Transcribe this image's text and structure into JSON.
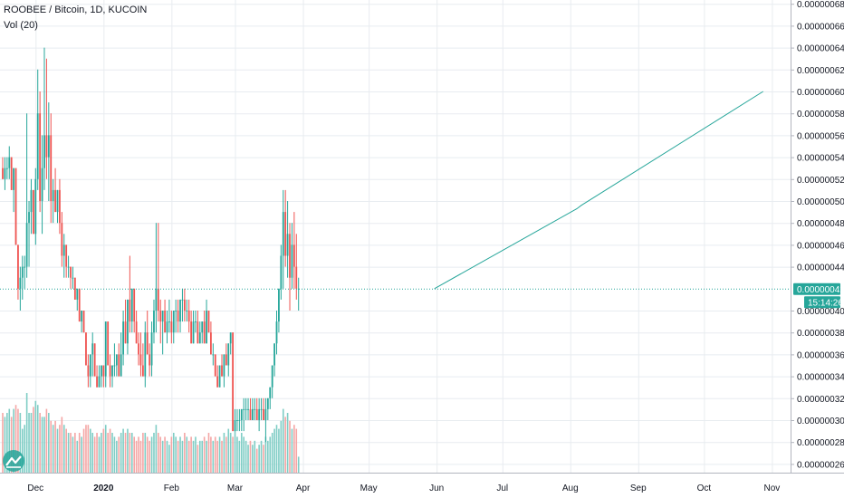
{
  "header": {
    "title": "ROOBEE / Bitcoin, 1D, KUCOIN",
    "volume_label": "Vol (20)"
  },
  "price_axis": {
    "ticks": [
      "0.00000068",
      "0.00000066",
      "0.00000064",
      "0.00000062",
      "0.00000060",
      "0.00000058",
      "0.00000056",
      "0.00000054",
      "0.00000052",
      "0.00000050",
      "0.00000048",
      "0.00000046",
      "0.00000044",
      "0.00000040",
      "0.00000038",
      "0.00000036",
      "0.00000034",
      "0.00000032",
      "0.00000030",
      "0.00000028",
      "0.00000026"
    ],
    "current_price_label": "0.00000042",
    "countdown_label": "15:14:26"
  },
  "time_axis": {
    "ticks": [
      {
        "label": "Dec",
        "bold": false
      },
      {
        "label": "2020",
        "bold": true
      },
      {
        "label": "Feb",
        "bold": false
      },
      {
        "label": "Mar",
        "bold": false
      },
      {
        "label": "Apr",
        "bold": false
      },
      {
        "label": "May",
        "bold": false
      },
      {
        "label": "Jun",
        "bold": false
      },
      {
        "label": "Jul",
        "bold": false
      },
      {
        "label": "Aug",
        "bold": false
      },
      {
        "label": "Sep",
        "bold": false
      },
      {
        "label": "Oct",
        "bold": false
      },
      {
        "label": "Nov",
        "bold": false
      }
    ]
  },
  "colors": {
    "up": "#26a69a",
    "down": "#ef5350",
    "up_volume": "#7fcdc5",
    "down_volume": "#f4a6a5",
    "current_price_badge": "#26a69a",
    "countdown_badge": "#26a69a",
    "trend_line": "#26a69a",
    "grid": "#e8ecf0"
  },
  "logo_icon": "tradingview-logo-icon",
  "chart_data": {
    "type": "candlestick",
    "title": "ROOBEE / Bitcoin, 1D, KUCOIN",
    "start_date": "2019-11-16",
    "ylim": [
      2.5e-07,
      6.85e-07
    ],
    "grid": true,
    "current_price": 4.2e-07,
    "candles": [
      [
        5.3e-07,
        5.4e-07,
        5.2e-07,
        5.2e-07,
        0.3
      ],
      [
        5.2e-07,
        5.4e-07,
        5.1e-07,
        5.3e-07,
        0.28
      ],
      [
        5.3e-07,
        5.4e-07,
        5.2e-07,
        5.3e-07,
        0.3
      ],
      [
        5.3e-07,
        5.5e-07,
        5.2e-07,
        5.4e-07,
        0.32
      ],
      [
        5.4e-07,
        5.4e-07,
        5.1e-07,
        5.1e-07,
        0.28
      ],
      [
        5.1e-07,
        5.3e-07,
        4.9e-07,
        5.3e-07,
        0.32
      ],
      [
        5.3e-07,
        5.3e-07,
        4.6e-07,
        4.6e-07,
        0.34
      ],
      [
        4.6e-07,
        4.6e-07,
        4.1e-07,
        4.2e-07,
        0.32
      ],
      [
        4.2e-07,
        4.4e-07,
        4e-07,
        4.3e-07,
        0.3
      ],
      [
        4.3e-07,
        4.5e-07,
        4.1e-07,
        4.4e-07,
        0.22
      ],
      [
        4.4e-07,
        4.5e-07,
        4.2e-07,
        4.4e-07,
        0.24
      ],
      [
        4.4e-07,
        5.8e-07,
        4.3e-07,
        4.8e-07,
        0.4
      ],
      [
        4.8e-07,
        5e-07,
        4.4e-07,
        4.9e-07,
        0.3
      ],
      [
        4.9e-07,
        5.2e-07,
        4.7e-07,
        5.1e-07,
        0.3
      ],
      [
        5.1e-07,
        5.1e-07,
        4.7e-07,
        4.7e-07,
        0.33
      ],
      [
        4.7e-07,
        5.3e-07,
        4.6e-07,
        5.2e-07,
        0.36
      ],
      [
        5.2e-07,
        6.2e-07,
        5.1e-07,
        5.8e-07,
        0.34
      ],
      [
        5.8e-07,
        6e-07,
        4.9e-07,
        5e-07,
        0.3
      ],
      [
        5e-07,
        5.6e-07,
        4.7e-07,
        5.3e-07,
        0.28
      ],
      [
        5.3e-07,
        6.4e-07,
        5.1e-07,
        5.6e-07,
        0.28
      ],
      [
        5.6e-07,
        6.3e-07,
        5.2e-07,
        5.4e-07,
        0.32
      ],
      [
        5.4e-07,
        5.9e-07,
        5e-07,
        5.6e-07,
        0.3
      ],
      [
        5.6e-07,
        5.8e-07,
        4.8e-07,
        5e-07,
        0.26
      ],
      [
        5e-07,
        5.2e-07,
        4.8e-07,
        5.1e-07,
        0.24
      ],
      [
        5.1e-07,
        5.3e-07,
        4.9e-07,
        4.9e-07,
        0.26
      ],
      [
        4.9e-07,
        5.1e-07,
        4.8e-07,
        5.1e-07,
        0.22
      ],
      [
        5.1e-07,
        5.2e-07,
        4.7e-07,
        4.8e-07,
        0.24
      ],
      [
        4.8e-07,
        4.9e-07,
        4.4e-07,
        4.5e-07,
        0.28
      ],
      [
        4.5e-07,
        4.7e-07,
        4.3e-07,
        4.6e-07,
        0.24
      ],
      [
        4.6e-07,
        4.6e-07,
        4.3e-07,
        4.4e-07,
        0.22
      ],
      [
        4.4e-07,
        4.5e-07,
        4.3e-07,
        4.4e-07,
        0.2
      ],
      [
        4.4e-07,
        4.4e-07,
        4.2e-07,
        4.3e-07,
        0.2
      ],
      [
        4.3e-07,
        4.4e-07,
        4.2e-07,
        4.3e-07,
        0.18
      ],
      [
        4.3e-07,
        4.3e-07,
        4.1e-07,
        4.1e-07,
        0.2
      ],
      [
        4.1e-07,
        4.2e-07,
        4e-07,
        4.2e-07,
        0.16
      ],
      [
        4.2e-07,
        4.2e-07,
        3.9e-07,
        3.9e-07,
        0.2
      ],
      [
        3.9e-07,
        4e-07,
        3.8e-07,
        4e-07,
        0.18
      ],
      [
        4e-07,
        4e-07,
        3.8e-07,
        3.8e-07,
        0.22
      ],
      [
        3.8e-07,
        3.8e-07,
        3.5e-07,
        3.5e-07,
        0.24
      ],
      [
        3.5e-07,
        3.6e-07,
        3.3e-07,
        3.4e-07,
        0.24
      ],
      [
        3.4e-07,
        3.6e-07,
        3.3e-07,
        3.6e-07,
        0.22
      ],
      [
        3.6e-07,
        3.8e-07,
        3.4e-07,
        3.7e-07,
        0.2
      ],
      [
        3.7e-07,
        3.7e-07,
        3.4e-07,
        3.4e-07,
        0.18
      ],
      [
        3.4e-07,
        3.5e-07,
        3.3e-07,
        3.3e-07,
        0.2
      ],
      [
        3.3e-07,
        3.5e-07,
        3.3e-07,
        3.4e-07,
        0.18
      ],
      [
        3.4e-07,
        3.5e-07,
        3.3e-07,
        3.5e-07,
        0.2
      ],
      [
        3.5e-07,
        3.5e-07,
        3.3e-07,
        3.4e-07,
        0.22
      ],
      [
        3.4e-07,
        3.9e-07,
        3.3e-07,
        3.9e-07,
        0.24
      ],
      [
        3.9e-07,
        3.9e-07,
        3.5e-07,
        3.5e-07,
        0.2
      ],
      [
        3.5e-07,
        3.6e-07,
        3.3e-07,
        3.4e-07,
        0.22
      ],
      [
        3.4e-07,
        3.5e-07,
        3.3e-07,
        3.5e-07,
        0.2
      ],
      [
        3.5e-07,
        3.7e-07,
        3.4e-07,
        3.5e-07,
        0.18
      ],
      [
        3.5e-07,
        3.6e-07,
        3.4e-07,
        3.6e-07,
        0.16
      ],
      [
        3.6e-07,
        3.7e-07,
        3.4e-07,
        3.4e-07,
        0.18
      ],
      [
        3.4e-07,
        3.8e-07,
        3.4e-07,
        3.6e-07,
        0.2
      ],
      [
        3.6e-07,
        4e-07,
        3.5e-07,
        3.9e-07,
        0.22
      ],
      [
        3.9e-07,
        4.1e-07,
        3.7e-07,
        3.7e-07,
        0.2
      ],
      [
        3.7e-07,
        4.1e-07,
        3.6e-07,
        4.1e-07,
        0.22
      ],
      [
        4.1e-07,
        4.5e-07,
        3.8e-07,
        3.9e-07,
        0.2
      ],
      [
        3.9e-07,
        4.2e-07,
        3.8e-07,
        4.2e-07,
        0.2
      ],
      [
        4.2e-07,
        4.2e-07,
        3.8e-07,
        3.9e-07,
        0.18
      ],
      [
        3.9e-07,
        4e-07,
        3.7e-07,
        3.7e-07,
        0.16
      ],
      [
        3.7e-07,
        3.8e-07,
        3.5e-07,
        3.6e-07,
        0.18
      ],
      [
        3.6e-07,
        3.8e-07,
        3.4e-07,
        3.5e-07,
        0.16
      ],
      [
        3.5e-07,
        3.7e-07,
        3.4e-07,
        3.4e-07,
        0.2
      ],
      [
        3.4e-07,
        3.9e-07,
        3.3e-07,
        3.8e-07,
        0.2
      ],
      [
        3.8e-07,
        4e-07,
        3.6e-07,
        3.6e-07,
        0.18
      ],
      [
        3.6e-07,
        3.7e-07,
        3.4e-07,
        3.5e-07,
        0.16
      ],
      [
        3.5e-07,
        3.9e-07,
        3.4e-07,
        3.8e-07,
        0.18
      ],
      [
        3.8e-07,
        4.1e-07,
        3.7e-07,
        4e-07,
        0.2
      ],
      [
        4e-07,
        4.8e-07,
        3.8e-07,
        4.2e-07,
        0.24
      ],
      [
        4.2e-07,
        4.8e-07,
        3.9e-07,
        4e-07,
        0.2
      ],
      [
        4e-07,
        4.1e-07,
        3.7e-07,
        3.9e-07,
        0.18
      ],
      [
        3.9e-07,
        4e-07,
        3.6e-07,
        4e-07,
        0.16
      ],
      [
        4e-07,
        4.1e-07,
        3.8e-07,
        3.8e-07,
        0.18
      ],
      [
        3.8e-07,
        4e-07,
        3.7e-07,
        3.9e-07,
        0.16
      ],
      [
        3.9e-07,
        4.1e-07,
        3.8e-07,
        3.9e-07,
        0.14
      ],
      [
        3.9e-07,
        4e-07,
        3.7e-07,
        3.8e-07,
        0.18
      ],
      [
        3.8e-07,
        4e-07,
        3.7e-07,
        4e-07,
        0.2
      ],
      [
        4e-07,
        4.1e-07,
        3.8e-07,
        4e-07,
        0.18
      ],
      [
        4e-07,
        4.1e-07,
        3.8e-07,
        3.9e-07,
        0.16
      ],
      [
        3.9e-07,
        4.1e-07,
        3.8e-07,
        4.1e-07,
        0.18
      ],
      [
        4.1e-07,
        4.2e-07,
        3.9e-07,
        4.1e-07,
        0.16
      ],
      [
        4.1e-07,
        4.2e-07,
        3.9e-07,
        4e-07,
        0.2
      ],
      [
        4e-07,
        4.1e-07,
        3.9e-07,
        4e-07,
        0.18
      ],
      [
        4e-07,
        4.1e-07,
        3.8e-07,
        3.9e-07,
        0.16
      ],
      [
        3.9e-07,
        4e-07,
        3.7e-07,
        3.7e-07,
        0.18
      ],
      [
        3.7e-07,
        4e-07,
        3.7e-07,
        3.9e-07,
        0.16
      ],
      [
        3.9e-07,
        4e-07,
        3.8e-07,
        3.9e-07,
        0.18
      ],
      [
        3.9e-07,
        4e-07,
        3.7e-07,
        3.7e-07,
        0.14
      ],
      [
        3.7e-07,
        3.9e-07,
        3.7e-07,
        3.8e-07,
        0.16
      ],
      [
        3.8e-07,
        3.9e-07,
        3.7e-07,
        3.9e-07,
        0.16
      ],
      [
        3.9e-07,
        4e-07,
        3.7e-07,
        3.7e-07,
        0.18
      ],
      [
        3.7e-07,
        4.1e-07,
        3.7e-07,
        4e-07,
        0.16
      ],
      [
        4e-07,
        4e-07,
        3.8e-07,
        3.8e-07,
        0.2
      ],
      [
        3.8e-07,
        3.9e-07,
        3.6e-07,
        3.6e-07,
        0.18
      ],
      [
        3.6e-07,
        3.7e-07,
        3.5e-07,
        3.6e-07,
        0.16
      ],
      [
        3.6e-07,
        3.6e-07,
        3.4e-07,
        3.4e-07,
        0.18
      ],
      [
        3.4e-07,
        3.5e-07,
        3.3e-07,
        3.3e-07,
        0.16
      ],
      [
        3.3e-07,
        3.5e-07,
        3.3e-07,
        3.5e-07,
        0.18
      ],
      [
        3.5e-07,
        3.6e-07,
        3.4e-07,
        3.4e-07,
        0.16
      ],
      [
        3.4e-07,
        3.6e-07,
        3.3e-07,
        3.6e-07,
        0.2
      ],
      [
        3.6e-07,
        3.7e-07,
        3.5e-07,
        3.5e-07,
        0.18
      ],
      [
        3.5e-07,
        3.7e-07,
        3.4e-07,
        3.7e-07,
        0.22
      ],
      [
        3.7e-07,
        3.8e-07,
        3.6e-07,
        3.8e-07,
        0.2
      ],
      [
        3.8e-07,
        3.8e-07,
        2.9e-07,
        2.9e-07,
        0.18
      ],
      [
        2.9e-07,
        3.1e-07,
        2.9e-07,
        3e-07,
        0.22
      ],
      [
        3e-07,
        3.1e-07,
        2.9e-07,
        3e-07,
        0.18
      ],
      [
        3e-07,
        3.1e-07,
        2.9e-07,
        3e-07,
        0.16
      ],
      [
        3e-07,
        3.1e-07,
        2.9e-07,
        3.1e-07,
        0.2
      ],
      [
        3.1e-07,
        3.2e-07,
        2.9e-07,
        3.1e-07,
        0.18
      ],
      [
        3.1e-07,
        3.2e-07,
        3e-07,
        3.1e-07,
        0.16
      ],
      [
        3.1e-07,
        3.2e-07,
        3e-07,
        3.1e-07,
        0.14
      ],
      [
        3.1e-07,
        3.2e-07,
        3e-07,
        3e-07,
        0.16
      ],
      [
        3e-07,
        3.2e-07,
        3e-07,
        3.1e-07,
        0.14
      ],
      [
        3.1e-07,
        3.2e-07,
        3e-07,
        3.1e-07,
        0.16
      ],
      [
        3.1e-07,
        3.2e-07,
        3e-07,
        3e-07,
        0.12
      ],
      [
        3e-07,
        3.2e-07,
        2.9e-07,
        3.1e-07,
        0.14
      ],
      [
        3.1e-07,
        3.2e-07,
        3e-07,
        3.1e-07,
        0.16
      ],
      [
        3.1e-07,
        3.2e-07,
        3e-07,
        3e-07,
        0.14
      ],
      [
        3e-07,
        3.2e-07,
        2.8e-07,
        3.1e-07,
        0.18
      ],
      [
        3.1e-07,
        3.2e-07,
        3e-07,
        3.2e-07,
        0.16
      ],
      [
        3.2e-07,
        3.3e-07,
        3.1e-07,
        3.3e-07,
        0.18
      ],
      [
        3.3e-07,
        3.5e-07,
        3.2e-07,
        3.5e-07,
        0.2
      ],
      [
        3.5e-07,
        3.7e-07,
        3.4e-07,
        3.7e-07,
        0.22
      ],
      [
        3.7e-07,
        4e-07,
        3.6e-07,
        3.9e-07,
        0.24
      ],
      [
        3.9e-07,
        4.2e-07,
        3.8e-07,
        4.2e-07,
        0.22
      ],
      [
        4.2e-07,
        4.6e-07,
        4.1e-07,
        4.5e-07,
        0.26
      ],
      [
        4.5e-07,
        5.1e-07,
        4.2e-07,
        4.9e-07,
        0.32
      ],
      [
        4.9e-07,
        5.1e-07,
        4.4e-07,
        4.5e-07,
        0.28
      ],
      [
        4.5e-07,
        5e-07,
        4.3e-07,
        4.7e-07,
        0.3
      ],
      [
        4.7e-07,
        4.8e-07,
        4e-07,
        4.3e-07,
        0.26
      ],
      [
        4.3e-07,
        4.8e-07,
        4.2e-07,
        4.6e-07,
        0.22
      ],
      [
        4.6e-07,
        4.9e-07,
        4.2e-07,
        4.4e-07,
        0.24
      ],
      [
        4.4e-07,
        4.7e-07,
        4.1e-07,
        4.2e-07,
        0.22
      ],
      [
        4.2e-07,
        4.3e-07,
        4e-07,
        4.2e-07,
        0.08
      ]
    ],
    "trend_line": [
      {
        "date": "2020-05-31",
        "y": 4.2e-07
      },
      {
        "date": "2020-08-04",
        "y": 4.93e-07
      },
      {
        "date": "2020-08-06",
        "y": 4.96e-07
      },
      {
        "date": "2020-10-28",
        "y": 6e-07
      }
    ]
  }
}
